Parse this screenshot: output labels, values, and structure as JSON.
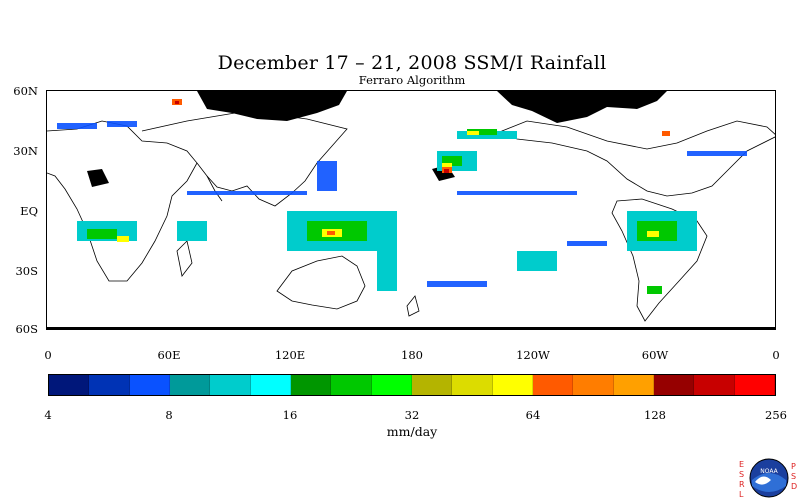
{
  "header": {
    "title": "December 17 – 21, 2008 SSM/I Rainfall",
    "subtitle": "Ferraro Algorithm"
  },
  "map": {
    "lat_labels": [
      "60N",
      "30N",
      "EQ",
      "30S",
      "60S"
    ],
    "lon_labels": [
      "0",
      "60E",
      "120E",
      "180",
      "120W",
      "60W",
      "0"
    ],
    "land_color": "#000000",
    "background": "#ffffff"
  },
  "colorbar": {
    "colors": [
      "#00177a",
      "#0033b5",
      "#0a52ff",
      "#009a9a",
      "#00cccc",
      "#00ffff",
      "#009600",
      "#00c800",
      "#00ff00",
      "#b4b400",
      "#dcdc00",
      "#ffff00",
      "#ff5a00",
      "#ff7d00",
      "#ffa000",
      "#960000",
      "#c80000",
      "#ff0000"
    ],
    "tick_labels": [
      "4",
      "8",
      "16",
      "32",
      "64",
      "128",
      "256"
    ],
    "unit": "mm/day"
  },
  "logo": {
    "left_letters": "ESRL",
    "right_letters": "PSD",
    "text": "NOAA"
  }
}
